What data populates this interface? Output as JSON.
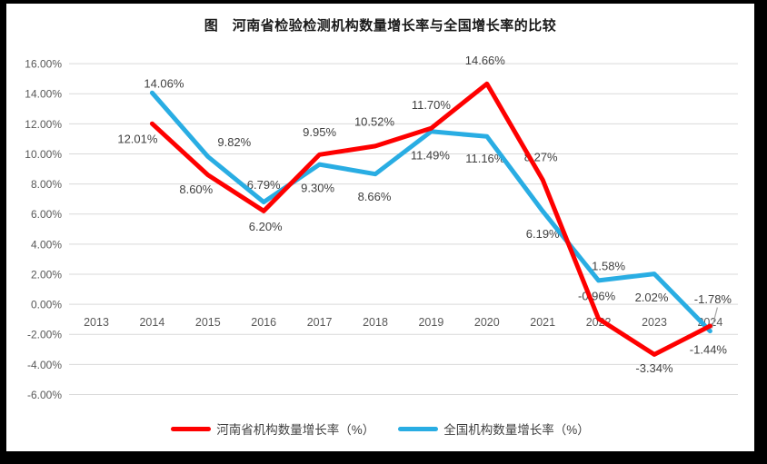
{
  "title": "图　河南省检验检测机构数量增长率与全国增长率的比较",
  "colors": {
    "henan_line": "#fe0000",
    "national_line": "#29ade3",
    "gridline": "#d9d9d9",
    "axis_text": "#595959",
    "data_label_text": "#404040",
    "leader_line": "#a6a6a6",
    "frame": "#000000",
    "background": "#ffffff"
  },
  "chart_data": {
    "type": "line",
    "title": "图　河南省检验检测机构数量增长率与全国增长率的比较",
    "categories": [
      "2013",
      "2014",
      "2015",
      "2016",
      "2017",
      "2018",
      "2019",
      "2020",
      "2021",
      "2022",
      "2023",
      "2024"
    ],
    "xlabel": "",
    "ylabel": "",
    "ylim": [
      -6,
      16
    ],
    "ytick_step": 2,
    "ytick_labels": [
      "16.00%",
      "14.00%",
      "12.00%",
      "10.00%",
      "8.00%",
      "6.00%",
      "4.00%",
      "2.00%",
      "0.00%",
      "-2.00%",
      "-4.00%",
      "-6.00%"
    ],
    "grid": true,
    "legend_position": "bottom",
    "series": [
      {
        "name": "全国机构数量增长率（%）",
        "color": "#29ade3",
        "x": [
          2014,
          2015,
          2016,
          2017,
          2018,
          2019,
          2020,
          2021,
          2022,
          2023,
          2024
        ],
        "values": [
          14.06,
          9.82,
          6.79,
          9.3,
          8.66,
          11.49,
          11.16,
          6.19,
          1.58,
          2.02,
          -1.78
        ],
        "labels": [
          "14.06%",
          "9.82%",
          "6.79%",
          "9.30%",
          "8.66%",
          "11.49%",
          "11.16%",
          "6.19%",
          "1.58%",
          "2.02%",
          "-1.78%"
        ],
        "label_offsets": [
          [
            13,
            -10
          ],
          [
            29,
            -16
          ],
          [
            0,
            -19
          ],
          [
            -2,
            26
          ],
          [
            -1,
            25
          ],
          [
            -1,
            26
          ],
          [
            -2,
            24
          ],
          [
            0,
            25
          ],
          [
            11,
            -16
          ],
          [
            -3,
            26
          ],
          [
            3,
            -35
          ]
        ]
      },
      {
        "name": "河南省机构数量增长率（%）",
        "color": "#fe0000",
        "x": [
          2014,
          2015,
          2016,
          2017,
          2018,
          2019,
          2020,
          2021,
          2022,
          2023,
          2024
        ],
        "values": [
          12.01,
          8.6,
          6.2,
          9.95,
          10.52,
          11.7,
          14.66,
          8.27,
          -0.96,
          -3.34,
          -1.44
        ],
        "labels": [
          "12.01%",
          "8.60%",
          "6.20%",
          "9.95%",
          "10.52%",
          "11.70%",
          "14.66%",
          "8.27%",
          "-0.96%",
          "-3.34%",
          "-1.44%"
        ],
        "label_offsets": [
          [
            -16,
            17
          ],
          [
            -13,
            16
          ],
          [
            2,
            17
          ],
          [
            0,
            -25
          ],
          [
            -1,
            -27
          ],
          [
            0,
            -26
          ],
          [
            -2,
            -26
          ],
          [
            -2,
            -25
          ],
          [
            -2,
            -25
          ],
          [
            0,
            15
          ],
          [
            -2,
            26
          ]
        ]
      }
    ],
    "annotations": [
      {
        "type": "leader_line",
        "series": 0,
        "index": 10
      }
    ]
  },
  "legend": {
    "items": [
      {
        "label": "河南省机构数量增长率（%）",
        "color": "#fe0000"
      },
      {
        "label": "全国机构数量增长率（%）",
        "color": "#29ade3"
      }
    ]
  }
}
